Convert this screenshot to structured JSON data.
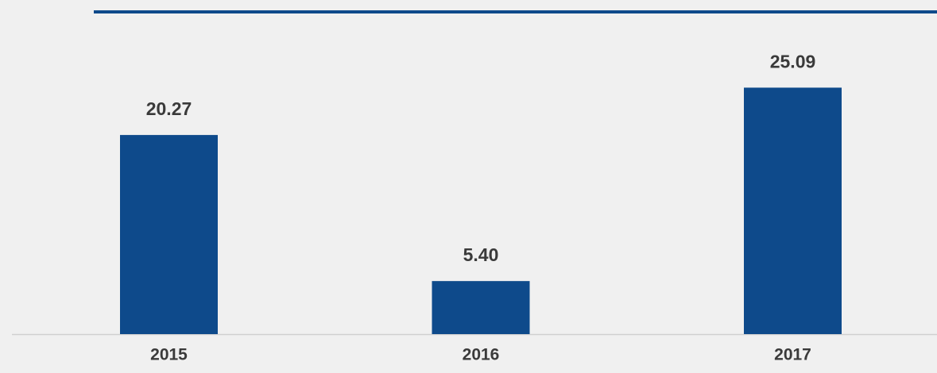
{
  "chart_data": {
    "type": "bar",
    "categories": [
      "2015",
      "2016",
      "2017"
    ],
    "values": [
      20.27,
      5.4,
      25.09
    ],
    "value_labels": [
      "20.27",
      "5.40",
      "25.09"
    ],
    "color": "#0e4a8b",
    "ylim": [
      0,
      32.8
    ]
  }
}
